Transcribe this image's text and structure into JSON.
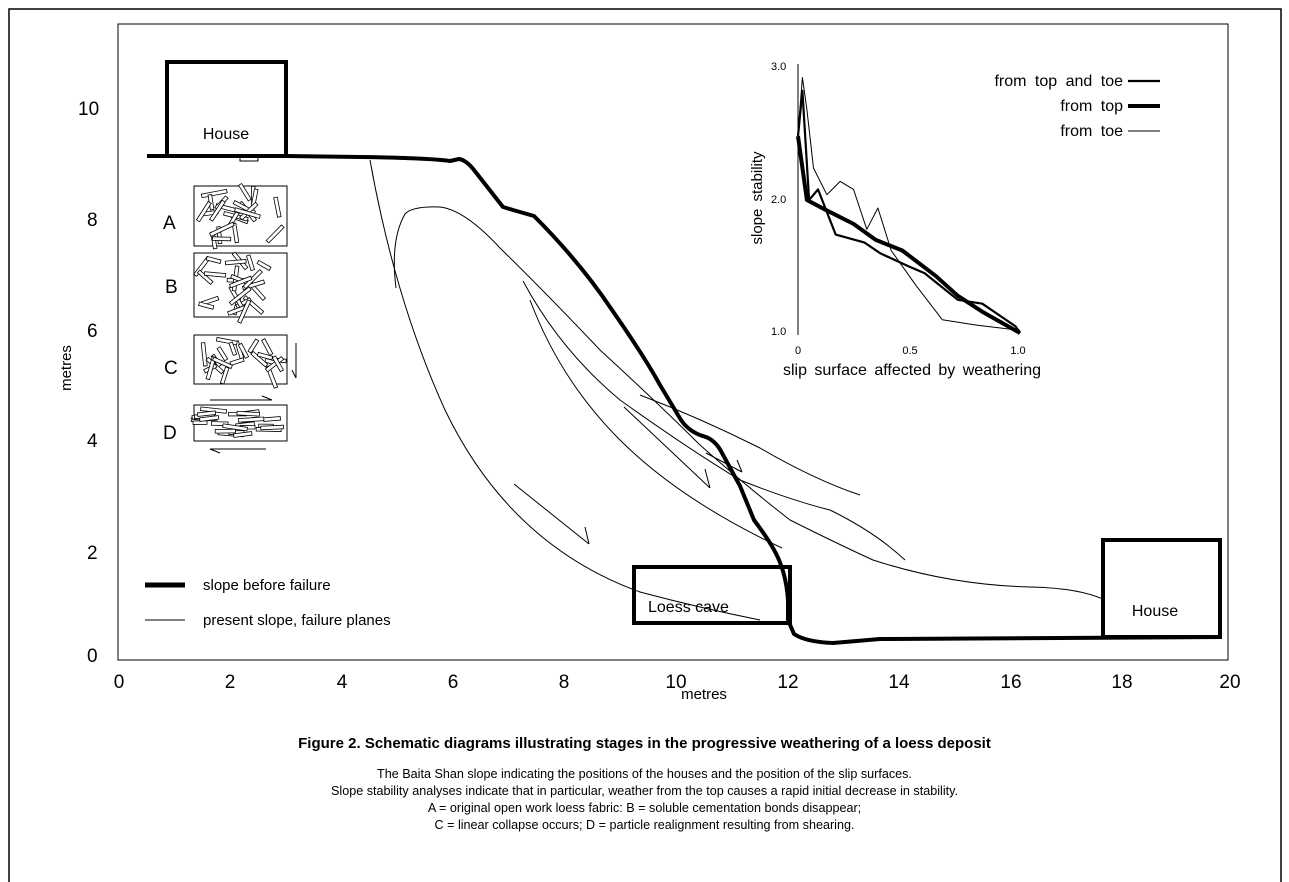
{
  "main_chart": {
    "x_axis_label": "metres",
    "y_axis_label": "metres",
    "x_ticks": [
      "0",
      "2",
      "4",
      "6",
      "8",
      "10",
      "12",
      "14",
      "16",
      "18",
      "20"
    ],
    "y_ticks": [
      "0",
      "2",
      "4",
      "6",
      "8",
      "10"
    ],
    "xlim": [
      0,
      20
    ],
    "ylim": [
      0,
      10.8
    ],
    "labels": {
      "house_left": "House",
      "house_right": "House",
      "loess_cave": "Loess cave"
    },
    "legend": {
      "thick": "slope before failure",
      "thin": "present slope, failure planes"
    },
    "fabric_labels": [
      "A",
      "B",
      "C",
      "D"
    ]
  },
  "chart_data": {
    "type": "line",
    "xlabel": "slip surface affected by weathering",
    "ylabel": "slope stability",
    "x_ticks": [
      "0",
      "0.5",
      "1.0"
    ],
    "y_ticks": [
      "1.0",
      "2.0",
      "3.0"
    ],
    "xlim": [
      0,
      1
    ],
    "ylim": [
      1,
      3
    ],
    "legend_position": "top-right",
    "series": [
      {
        "name": "from top and toe",
        "x": [
          0,
          0.02,
          0.05,
          0.09,
          0.17,
          0.3,
          0.37,
          0.5,
          0.57,
          0.72,
          0.83,
          0.98,
          1.0
        ],
        "y": [
          2.48,
          2.82,
          2.0,
          2.08,
          1.74,
          1.68,
          1.6,
          1.5,
          1.45,
          1.25,
          1.22,
          1.05,
          1.0
        ]
      },
      {
        "name": "from top",
        "x": [
          0,
          0.04,
          0.12,
          0.25,
          0.35,
          0.47,
          0.62,
          0.72,
          0.83,
          1.0
        ],
        "y": [
          2.48,
          2.0,
          1.93,
          1.82,
          1.7,
          1.62,
          1.43,
          1.28,
          1.16,
          1.0
        ]
      },
      {
        "name": "from toe",
        "x": [
          0,
          0.02,
          0.04,
          0.07,
          0.13,
          0.19,
          0.25,
          0.31,
          0.36,
          0.42,
          0.53,
          0.65,
          0.8,
          1.0
        ],
        "y": [
          2.5,
          2.92,
          2.68,
          2.24,
          2.04,
          2.14,
          2.08,
          1.78,
          1.94,
          1.62,
          1.36,
          1.1,
          1.06,
          1.02
        ]
      }
    ]
  },
  "caption": {
    "title": "Figure 2. Schematic diagrams illustrating stages in the progressive weathering of a loess deposit",
    "line1": "The Baita Shan slope indicating the positions of the houses and the position of the slip surfaces.",
    "line2": "Slope stability analyses indicate that in particular, weather from the top causes a rapid initial decrease in stability.",
    "line3": "A = original open work loess fabric: B = soluble cementation bonds disappear;",
    "line4": "C = linear collapse occurs; D = particle realignment resulting from shearing."
  }
}
